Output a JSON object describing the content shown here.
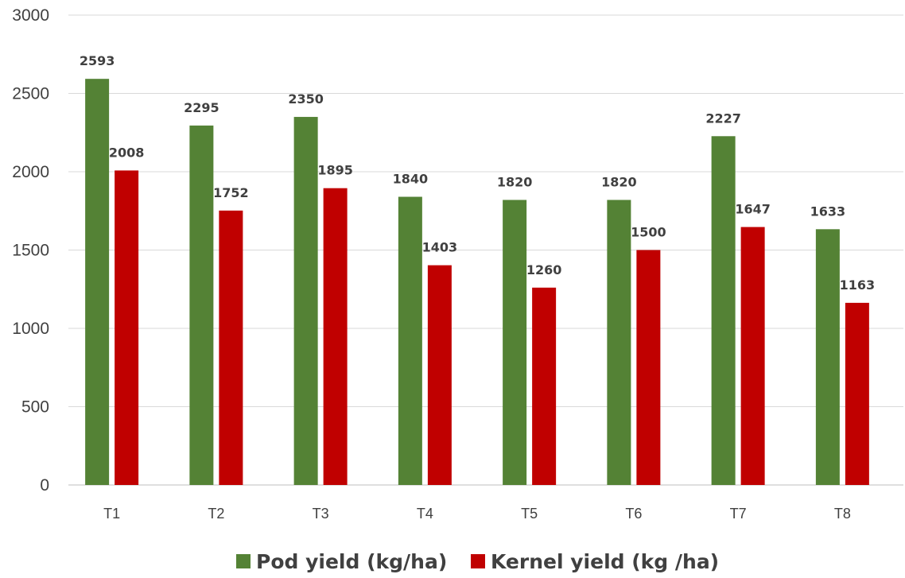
{
  "chart_data": {
    "type": "bar",
    "title": "",
    "xlabel": "",
    "ylabel": "",
    "categories": [
      "T1",
      "T2",
      "T3",
      "T4",
      "T5",
      "T6",
      "T7",
      "T8"
    ],
    "series": [
      {
        "name": "Pod yield (kg/ha)",
        "color": "#548235",
        "values": [
          2593,
          2295,
          2350,
          1840,
          1820,
          1820,
          2227,
          1633
        ]
      },
      {
        "name": "Kernel yield (kg /ha)",
        "color": "#C00000",
        "values": [
          2008,
          1752,
          1895,
          1403,
          1260,
          1500,
          1647,
          1163
        ]
      }
    ],
    "ylim": [
      0,
      3000
    ],
    "yticks": [
      0,
      500,
      1000,
      1500,
      2000,
      2500,
      3000
    ],
    "grid": true,
    "legend_position": "bottom",
    "data_labels": true
  }
}
